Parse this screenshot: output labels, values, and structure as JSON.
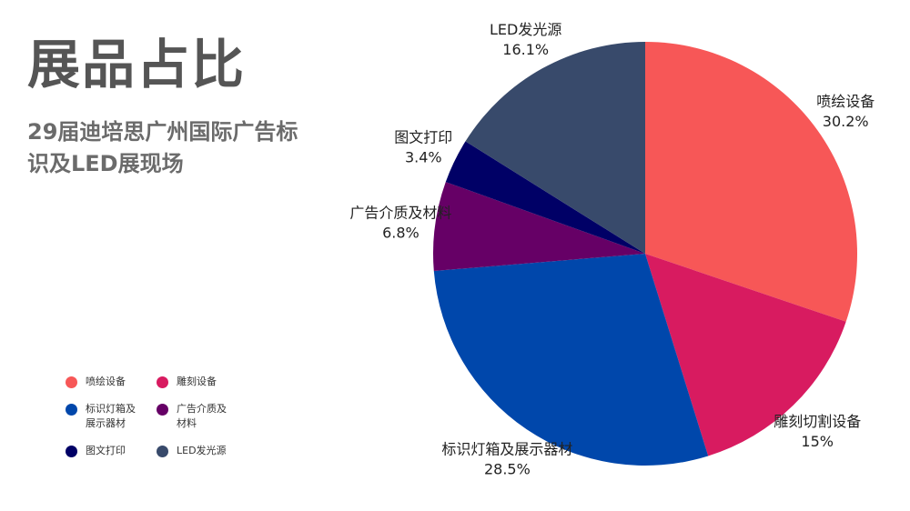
{
  "title": "展品占比",
  "subtitle": "29届迪培思广州国际广告标识及LED展现场",
  "chart_data": {
    "type": "pie",
    "start_angle_deg": 0,
    "direction": "clockwise",
    "legend_position": "bottom-left",
    "slices": [
      {
        "name": "喷绘设备",
        "value": 30.2,
        "pct_label": "30.2%",
        "color": "#f75757"
      },
      {
        "name": "雕刻切割设备",
        "legend_name": "雕刻设备",
        "value": 15,
        "pct_label": "15%",
        "color": "#d81b60"
      },
      {
        "name": "标识灯箱及展示器材",
        "value": 28.5,
        "pct_label": "28.5%",
        "color": "#0047ab"
      },
      {
        "name": "广告介质及材料",
        "value": 6.8,
        "pct_label": "6.8%",
        "color": "#660066"
      },
      {
        "name": "图文打印",
        "value": 3.4,
        "pct_label": "3.4%",
        "color": "#000066"
      },
      {
        "name": "LED发光源",
        "value": 16.1,
        "pct_label": "16.1%",
        "color": "#384a6b"
      }
    ]
  }
}
